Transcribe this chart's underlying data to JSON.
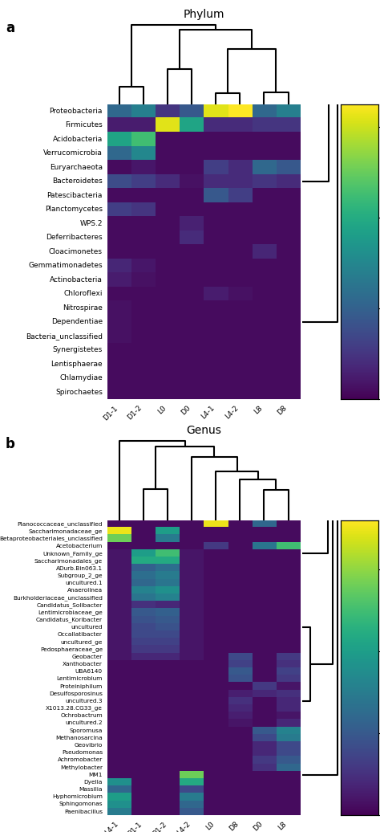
{
  "title_a": "Phylum",
  "title_b": "Genus",
  "label_a": "a",
  "label_b": "b",
  "col_order_a": [
    "L0",
    "D0",
    "L8",
    "D8",
    "L4-1",
    "L4-2",
    "D1-1",
    "D1-2"
  ],
  "row_order_a": [
    "Acidobacteria",
    "Verrucomicrobia",
    "Planctomycetes",
    "Gemmatimonadetes",
    "Dependentiae",
    "Bacteria_unclassified",
    "Nitrospirae",
    "Chlamydiae",
    "WPS.2",
    "Cloacimonetes",
    "Spirochaetes",
    "Lentisphaerae",
    "Synergistetes",
    "Deferribacteres",
    "Chloroflexi",
    "Actinobacteria",
    "Patescibacteria",
    "Euryarchaeota",
    "Bacteroidetes",
    "Firmicutes",
    "Proteobacteria"
  ],
  "col_order_b": [
    "L0",
    "D0",
    "L8",
    "D8",
    "D1-1",
    "D1-2",
    "L4-1",
    "L4-2"
  ],
  "row_order_b": [
    "MM1",
    "Saccharimonadaceae_ge",
    "Betaproteobacteriales_unclassified",
    "Dyella",
    "Hyphomicrobium",
    "Sphingomonas",
    "Paenibacillus",
    "Massilia",
    "Unknown_Family_ge",
    "Saccharimonadales_ge",
    "Anaerolinea",
    "Burkholderiaceae_unclassified",
    "Subgroup_2_ge",
    "uncultured.1",
    "ADurb.Bin063.1",
    "Lentimicrobiaceae_ge",
    "Candidatus_Koribacter",
    "uncultured",
    "Occallatibacter",
    "uncultured_ge",
    "Pedosphaeraceae_ge",
    "Geobacter",
    "Candidatus_Solibacter",
    "UBA6140",
    "Lentimicrobium",
    "Xanthobacter",
    "uncultured.3",
    "X1013.28.CG33_ge",
    "Desulfosporosinus",
    "Ochrobactrum",
    "Geovibrio",
    "uncultured.2",
    "Proteiniphilum",
    "Pseudomonas",
    "Achromobacter",
    "Sporomusa",
    "Methanosarcina",
    "Methylobacter",
    "Acetobacterium",
    "Planococcaceae_unclassified"
  ],
  "heatmap_a": {
    "Acidobacteria": {
      "L0": 0.02,
      "D0": 0.02,
      "L8": 0.02,
      "D8": 0.02,
      "L4-1": 0.02,
      "L4-2": 0.02,
      "D1-1": 0.38,
      "D1-2": 0.45
    },
    "Verrucomicrobia": {
      "L0": 0.02,
      "D0": 0.02,
      "L8": 0.02,
      "D8": 0.02,
      "L4-1": 0.02,
      "L4-2": 0.02,
      "D1-1": 0.22,
      "D1-2": 0.3
    },
    "Planctomycetes": {
      "L0": 0.02,
      "D0": 0.02,
      "L8": 0.02,
      "D8": 0.02,
      "L4-1": 0.02,
      "L4-2": 0.02,
      "D1-1": 0.12,
      "D1-2": 0.1
    },
    "Gemmatimonadetes": {
      "L0": 0.02,
      "D0": 0.02,
      "L8": 0.02,
      "D8": 0.02,
      "L4-1": 0.02,
      "L4-2": 0.02,
      "D1-1": 0.07,
      "D1-2": 0.04
    },
    "Dependentiae": {
      "L0": 0.02,
      "D0": 0.02,
      "L8": 0.02,
      "D8": 0.02,
      "L4-1": 0.02,
      "L4-2": 0.02,
      "D1-1": 0.03,
      "D1-2": 0.02
    },
    "Bacteria_unclassified": {
      "L0": 0.02,
      "D0": 0.02,
      "L8": 0.02,
      "D8": 0.02,
      "L4-1": 0.02,
      "L4-2": 0.02,
      "D1-1": 0.03,
      "D1-2": 0.02
    },
    "Nitrospirae": {
      "L0": 0.02,
      "D0": 0.02,
      "L8": 0.02,
      "D8": 0.02,
      "L4-1": 0.02,
      "L4-2": 0.02,
      "D1-1": 0.03,
      "D1-2": 0.02
    },
    "Chlamydiae": {
      "L0": 0.02,
      "D0": 0.02,
      "L8": 0.02,
      "D8": 0.02,
      "L4-1": 0.02,
      "L4-2": 0.02,
      "D1-1": 0.02,
      "D1-2": 0.02
    },
    "WPS.2": {
      "L0": 0.02,
      "D0": 0.06,
      "L8": 0.02,
      "D8": 0.02,
      "L4-1": 0.02,
      "L4-2": 0.02,
      "D1-1": 0.02,
      "D1-2": 0.02
    },
    "Cloacimonetes": {
      "L0": 0.02,
      "D0": 0.02,
      "L8": 0.07,
      "D8": 0.02,
      "L4-1": 0.02,
      "L4-2": 0.02,
      "D1-1": 0.02,
      "D1-2": 0.02
    },
    "Spirochaetes": {
      "L0": 0.02,
      "D0": 0.02,
      "L8": 0.02,
      "D8": 0.02,
      "L4-1": 0.02,
      "L4-2": 0.02,
      "D1-1": 0.02,
      "D1-2": 0.02
    },
    "Lentisphaerae": {
      "L0": 0.02,
      "D0": 0.02,
      "L8": 0.02,
      "D8": 0.02,
      "L4-1": 0.02,
      "L4-2": 0.02,
      "D1-1": 0.02,
      "D1-2": 0.02
    },
    "Synergistetes": {
      "L0": 0.02,
      "D0": 0.02,
      "L8": 0.02,
      "D8": 0.02,
      "L4-1": 0.02,
      "L4-2": 0.02,
      "D1-1": 0.02,
      "D1-2": 0.02
    },
    "Deferribacteres": {
      "L0": 0.02,
      "D0": 0.08,
      "L8": 0.02,
      "D8": 0.02,
      "L4-1": 0.02,
      "L4-2": 0.02,
      "D1-1": 0.02,
      "D1-2": 0.02
    },
    "Chloroflexi": {
      "L0": 0.02,
      "D0": 0.02,
      "L8": 0.02,
      "D8": 0.02,
      "L4-1": 0.05,
      "L4-2": 0.03,
      "D1-1": 0.02,
      "D1-2": 0.02
    },
    "Actinobacteria": {
      "L0": 0.02,
      "D0": 0.02,
      "L8": 0.02,
      "D8": 0.02,
      "L4-1": 0.02,
      "L4-2": 0.02,
      "D1-1": 0.05,
      "D1-2": 0.03
    },
    "Patescibacteria": {
      "L0": 0.02,
      "D0": 0.02,
      "L8": 0.02,
      "D8": 0.02,
      "L4-1": 0.18,
      "L4-2": 0.12,
      "D1-1": 0.02,
      "D1-2": 0.02
    },
    "Euryarchaeota": {
      "L0": 0.02,
      "D0": 0.02,
      "L8": 0.22,
      "D8": 0.18,
      "L4-1": 0.12,
      "L4-2": 0.08,
      "D1-1": 0.02,
      "D1-2": 0.04
    },
    "Bacteroidetes": {
      "L0": 0.08,
      "D0": 0.03,
      "L8": 0.1,
      "D8": 0.08,
      "L4-1": 0.08,
      "L4-2": 0.08,
      "D1-1": 0.15,
      "D1-2": 0.12
    },
    "Firmicutes": {
      "L0": 0.62,
      "D0": 0.38,
      "L8": 0.1,
      "D8": 0.1,
      "L4-1": 0.08,
      "L4-2": 0.08,
      "D1-1": 0.05,
      "D1-2": 0.05
    },
    "Proteobacteria": {
      "L0": 0.1,
      "D0": 0.18,
      "L8": 0.22,
      "D8": 0.28,
      "L4-1": 0.62,
      "L4-2": 0.65,
      "D1-1": 0.22,
      "D1-2": 0.28
    }
  },
  "heatmap_b": {
    "MM1": {
      "L0": 0.01,
      "D0": 0.01,
      "L8": 0.01,
      "D8": 0.01,
      "D1-1": 0.01,
      "D1-2": 0.01,
      "L4-1": 0.01,
      "L4-2": 0.28
    },
    "Saccharimonadaceae_ge": {
      "L0": 0.01,
      "D0": 0.01,
      "L8": 0.01,
      "D8": 0.01,
      "D1-1": 0.01,
      "D1-2": 0.2,
      "L4-1": 0.35,
      "L4-2": 0.01
    },
    "Betaproteobacteriales_unclassified": {
      "L0": 0.01,
      "D0": 0.01,
      "L8": 0.01,
      "D8": 0.01,
      "D1-1": 0.01,
      "D1-2": 0.15,
      "L4-1": 0.28,
      "L4-2": 0.01
    },
    "Dyella": {
      "L0": 0.01,
      "D0": 0.01,
      "L8": 0.01,
      "D8": 0.01,
      "D1-1": 0.01,
      "D1-2": 0.01,
      "L4-1": 0.18,
      "L4-2": 0.22
    },
    "Hyphomicrobium": {
      "L0": 0.01,
      "D0": 0.01,
      "L8": 0.01,
      "D8": 0.01,
      "D1-1": 0.01,
      "D1-2": 0.01,
      "L4-1": 0.2,
      "L4-2": 0.15
    },
    "Sphingomonas": {
      "L0": 0.01,
      "D0": 0.01,
      "L8": 0.01,
      "D8": 0.01,
      "D1-1": 0.01,
      "D1-2": 0.01,
      "L4-1": 0.18,
      "L4-2": 0.12
    },
    "Paenibacillus": {
      "L0": 0.01,
      "D0": 0.01,
      "L8": 0.01,
      "D8": 0.01,
      "D1-1": 0.01,
      "D1-2": 0.01,
      "L4-1": 0.15,
      "L4-2": 0.1
    },
    "Massilia": {
      "L0": 0.01,
      "D0": 0.01,
      "L8": 0.01,
      "D8": 0.01,
      "D1-1": 0.01,
      "D1-2": 0.01,
      "L4-1": 0.12,
      "L4-2": 0.08
    },
    "Unknown_Family_ge": {
      "L0": 0.01,
      "D0": 0.01,
      "L8": 0.01,
      "D8": 0.01,
      "D1-1": 0.2,
      "D1-2": 0.25,
      "L4-1": 0.02,
      "L4-2": 0.02
    },
    "Saccharimonadales_ge": {
      "L0": 0.01,
      "D0": 0.01,
      "L8": 0.01,
      "D8": 0.01,
      "D1-1": 0.22,
      "D1-2": 0.22,
      "L4-1": 0.02,
      "L4-2": 0.02
    },
    "Anaerolinea": {
      "L0": 0.01,
      "D0": 0.01,
      "L8": 0.01,
      "D8": 0.01,
      "D1-1": 0.16,
      "D1-2": 0.18,
      "L4-1": 0.02,
      "L4-2": 0.02
    },
    "Burkholderiaceae_unclassified": {
      "L0": 0.01,
      "D0": 0.01,
      "L8": 0.01,
      "D8": 0.01,
      "D1-1": 0.14,
      "D1-2": 0.16,
      "L4-1": 0.02,
      "L4-2": 0.02
    },
    "Subgroup_2_ge": {
      "L0": 0.01,
      "D0": 0.01,
      "L8": 0.01,
      "D8": 0.01,
      "D1-1": 0.13,
      "D1-2": 0.15,
      "L4-1": 0.02,
      "L4-2": 0.02
    },
    "uncultured.1": {
      "L0": 0.01,
      "D0": 0.01,
      "L8": 0.01,
      "D8": 0.01,
      "D1-1": 0.12,
      "D1-2": 0.14,
      "L4-1": 0.02,
      "L4-2": 0.02
    },
    "ADurb.Bin063.1": {
      "L0": 0.01,
      "D0": 0.01,
      "L8": 0.01,
      "D8": 0.01,
      "D1-1": 0.11,
      "D1-2": 0.13,
      "L4-1": 0.02,
      "L4-2": 0.02
    },
    "Lentimicrobiaceae_ge": {
      "L0": 0.01,
      "D0": 0.01,
      "L8": 0.01,
      "D8": 0.01,
      "D1-1": 0.1,
      "D1-2": 0.11,
      "L4-1": 0.02,
      "L4-2": 0.02
    },
    "Candidatus_Koribacter": {
      "L0": 0.01,
      "D0": 0.01,
      "L8": 0.01,
      "D8": 0.01,
      "D1-1": 0.09,
      "D1-2": 0.1,
      "L4-1": 0.02,
      "L4-2": 0.02
    },
    "uncultured": {
      "L0": 0.01,
      "D0": 0.01,
      "L8": 0.01,
      "D8": 0.01,
      "D1-1": 0.08,
      "D1-2": 0.09,
      "L4-1": 0.02,
      "L4-2": 0.02
    },
    "Occallatibacter": {
      "L0": 0.01,
      "D0": 0.01,
      "L8": 0.01,
      "D8": 0.01,
      "D1-1": 0.08,
      "D1-2": 0.08,
      "L4-1": 0.02,
      "L4-2": 0.02
    },
    "uncultured_ge": {
      "L0": 0.01,
      "D0": 0.01,
      "L8": 0.01,
      "D8": 0.01,
      "D1-1": 0.07,
      "D1-2": 0.07,
      "L4-1": 0.02,
      "L4-2": 0.02
    },
    "Pedosphaeraceae_ge": {
      "L0": 0.01,
      "D0": 0.01,
      "L8": 0.01,
      "D8": 0.01,
      "D1-1": 0.06,
      "D1-2": 0.06,
      "L4-1": 0.02,
      "L4-2": 0.02
    },
    "Geobacter": {
      "L0": 0.01,
      "D0": 0.01,
      "L8": 0.06,
      "D8": 0.08,
      "D1-1": 0.04,
      "D1-2": 0.04,
      "L4-1": 0.02,
      "L4-2": 0.02
    },
    "Candidatus_Solibacter": {
      "L0": 0.01,
      "D0": 0.01,
      "L8": 0.01,
      "D8": 0.01,
      "D1-1": 0.05,
      "D1-2": 0.04,
      "L4-1": 0.02,
      "L4-2": 0.02
    },
    "UBA6140": {
      "L0": 0.01,
      "D0": 0.01,
      "L8": 0.07,
      "D8": 0.1,
      "D1-1": 0.01,
      "D1-2": 0.01,
      "L4-1": 0.01,
      "L4-2": 0.01
    },
    "Lentimicrobium": {
      "L0": 0.01,
      "D0": 0.01,
      "L8": 0.06,
      "D8": 0.09,
      "D1-1": 0.01,
      "D1-2": 0.01,
      "L4-1": 0.01,
      "L4-2": 0.01
    },
    "Xanthobacter": {
      "L0": 0.01,
      "D0": 0.01,
      "L8": 0.05,
      "D8": 0.07,
      "D1-1": 0.01,
      "D1-2": 0.01,
      "L4-1": 0.01,
      "L4-2": 0.01
    },
    "uncultured.3": {
      "L0": 0.01,
      "D0": 0.01,
      "L8": 0.04,
      "D8": 0.05,
      "D1-1": 0.01,
      "D1-2": 0.01,
      "L4-1": 0.01,
      "L4-2": 0.01
    },
    "X1013.28.CG33_ge": {
      "L0": 0.01,
      "D0": 0.01,
      "L8": 0.04,
      "D8": 0.04,
      "D1-1": 0.01,
      "D1-2": 0.01,
      "L4-1": 0.01,
      "L4-2": 0.01
    },
    "Desulfosporosinus": {
      "L0": 0.01,
      "D0": 0.04,
      "L8": 0.05,
      "D8": 0.03,
      "D1-1": 0.01,
      "D1-2": 0.01,
      "L4-1": 0.01,
      "L4-2": 0.01
    },
    "Ochrobactrum": {
      "L0": 0.01,
      "D0": 0.01,
      "L8": 0.02,
      "D8": 0.03,
      "D1-1": 0.01,
      "D1-2": 0.01,
      "L4-1": 0.01,
      "L4-2": 0.01
    },
    "Geovibrio": {
      "L0": 0.01,
      "D0": 0.04,
      "L8": 0.08,
      "D8": 0.01,
      "D1-1": 0.01,
      "D1-2": 0.01,
      "L4-1": 0.01,
      "L4-2": 0.01
    },
    "uncultured.2": {
      "L0": 0.01,
      "D0": 0.01,
      "L8": 0.04,
      "D8": 0.02,
      "D1-1": 0.01,
      "D1-2": 0.01,
      "L4-1": 0.01,
      "L4-2": 0.01
    },
    "Proteiniphilum": {
      "L0": 0.01,
      "D0": 0.06,
      "L8": 0.02,
      "D8": 0.01,
      "D1-1": 0.01,
      "D1-2": 0.01,
      "L4-1": 0.01,
      "L4-2": 0.01
    },
    "Pseudomonas": {
      "L0": 0.01,
      "D0": 0.04,
      "L8": 0.08,
      "D8": 0.01,
      "D1-1": 0.01,
      "D1-2": 0.01,
      "L4-1": 0.01,
      "L4-2": 0.01
    },
    "Achromobacter": {
      "L0": 0.01,
      "D0": 0.06,
      "L8": 0.1,
      "D8": 0.01,
      "D1-1": 0.01,
      "D1-2": 0.01,
      "L4-1": 0.01,
      "L4-2": 0.01
    },
    "Sporomusa": {
      "L0": 0.01,
      "D0": 0.1,
      "L8": 0.16,
      "D8": 0.01,
      "D1-1": 0.01,
      "D1-2": 0.01,
      "L4-1": 0.01,
      "L4-2": 0.01
    },
    "Methanosarcina": {
      "L0": 0.01,
      "D0": 0.08,
      "L8": 0.15,
      "D8": 0.01,
      "D1-1": 0.01,
      "D1-2": 0.01,
      "L4-1": 0.01,
      "L4-2": 0.01
    },
    "Methylobacter": {
      "L0": 0.01,
      "D0": 0.05,
      "L8": 0.12,
      "D8": 0.01,
      "D1-1": 0.01,
      "D1-2": 0.01,
      "L4-1": 0.01,
      "L4-2": 0.01
    },
    "Acetobacterium": {
      "L0": 0.06,
      "D0": 0.14,
      "L8": 0.25,
      "D8": 0.01,
      "D1-1": 0.01,
      "D1-2": 0.01,
      "L4-1": 0.01,
      "L4-2": 0.01
    },
    "Planococcaceae_unclassified": {
      "L0": 0.35,
      "D0": 0.12,
      "L8": 0.01,
      "D8": 0.01,
      "D1-1": 0.01,
      "D1-2": 0.01,
      "L4-1": 0.01,
      "L4-2": 0.01
    }
  },
  "cmap": "viridis",
  "colorbar_ticks_a": [
    0.0,
    0.2,
    0.4,
    0.6
  ],
  "colorbar_ticks_b": [
    0.0,
    0.1,
    0.2,
    0.3
  ],
  "vmin_a": 0.0,
  "vmax_a": 0.65,
  "vmin_b": 0.0,
  "vmax_b": 0.36
}
